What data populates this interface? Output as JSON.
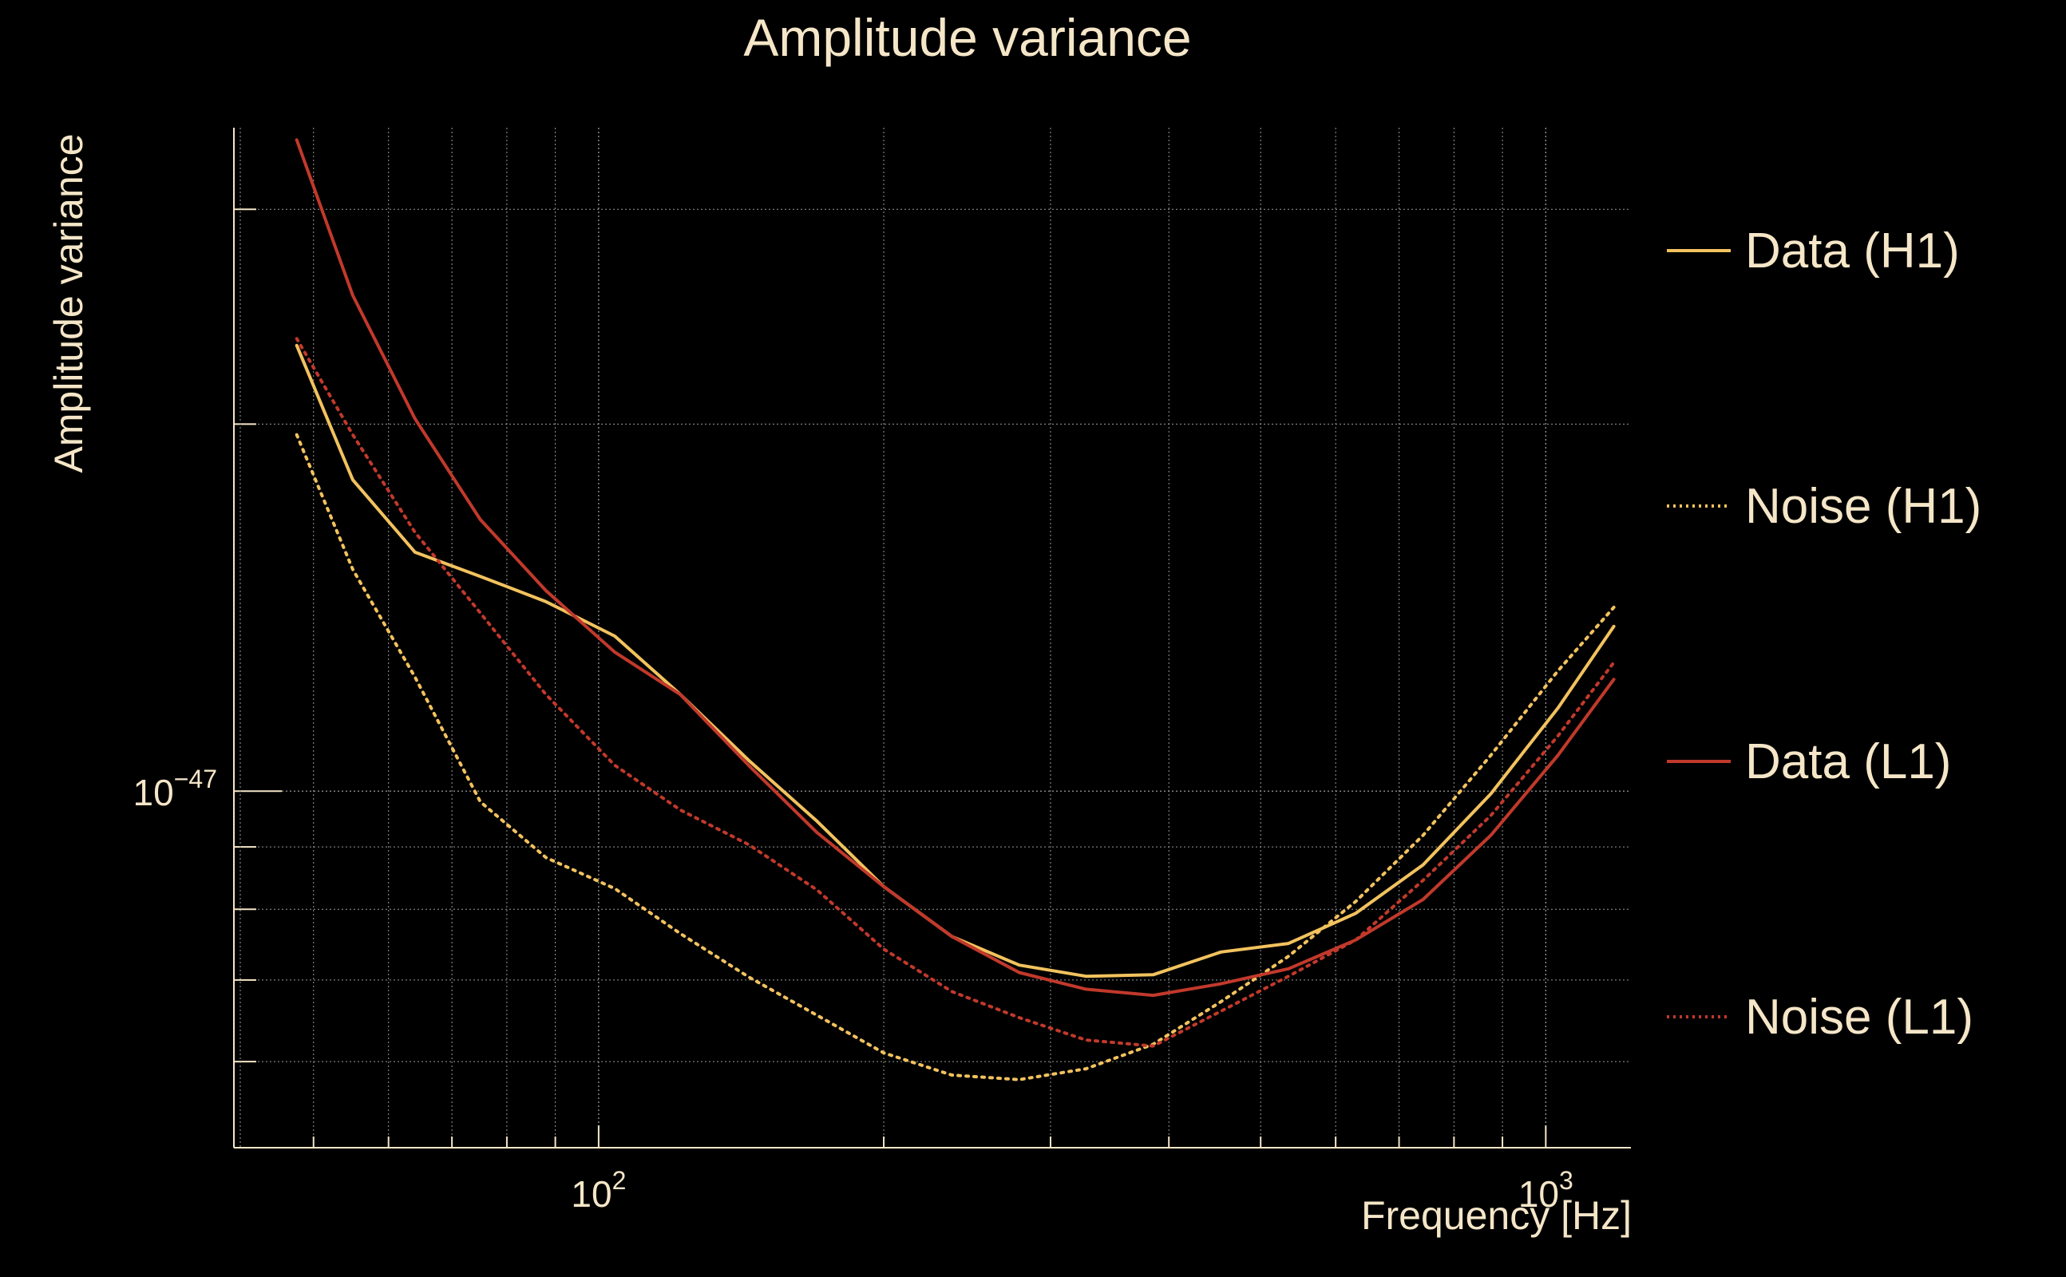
{
  "chart_data": {
    "type": "line",
    "title": "Amplitude variance",
    "xlabel": "Frequency [Hz]",
    "ylabel": "Amplitude variance",
    "xscale": "log",
    "yscale": "log",
    "xlim": [
      41.2,
      1230
    ],
    "ylim": [
      5.1e-48,
      3.5e-47
    ],
    "grid": true,
    "legend_position": "right",
    "x_ticks": [
      {
        "value": 100,
        "base": "10",
        "exp": "2"
      },
      {
        "value": 1000,
        "base": "10",
        "exp": "3"
      }
    ],
    "y_ticks": [
      {
        "value": 1e-47,
        "base": "10",
        "exp": "−47"
      }
    ],
    "series": [
      {
        "name": "Data (H1)",
        "color": "#F2C25E",
        "dash": "solid",
        "x": [
          48,
          55,
          64,
          75,
          88,
          104,
          122,
          144,
          170,
          200,
          236,
          278,
          327,
          385,
          454,
          535,
          630,
          742,
          875,
          1030,
          1180
        ],
        "y": [
          2.32e-47,
          1.8e-47,
          1.57e-47,
          1.5e-47,
          1.43e-47,
          1.34e-47,
          1.2e-47,
          1.06e-47,
          9.45e-48,
          8.35e-48,
          7.6e-48,
          7.2e-48,
          7.05e-48,
          7.07e-48,
          7.38e-48,
          7.5e-48,
          7.94e-48,
          8.7e-48,
          9.95e-48,
          1.17e-47,
          1.365e-47
        ]
      },
      {
        "name": "Noise (H1)",
        "color": "#F2C25E",
        "dash": "dotted",
        "x": [
          48,
          55,
          64,
          75,
          88,
          104,
          122,
          144,
          170,
          200,
          236,
          278,
          327,
          385,
          454,
          535,
          630,
          742,
          875,
          1030,
          1180
        ],
        "y": [
          1.96e-47,
          1.52e-47,
          1.24e-47,
          9.8e-48,
          8.82e-48,
          8.32e-48,
          7.64e-48,
          7.04e-48,
          6.55e-48,
          6.1e-48,
          5.85e-48,
          5.8e-48,
          5.92e-48,
          6.2e-48,
          6.72e-48,
          7.32e-48,
          8.12e-48,
          9.2e-48,
          1.07e-47,
          1.255e-47,
          1.415e-47
        ]
      },
      {
        "name": "Data (L1)",
        "color": "#C1392B",
        "dash": "solid",
        "x": [
          48,
          55,
          64,
          75,
          88,
          104,
          122,
          144,
          170,
          200,
          236,
          278,
          327,
          385,
          454,
          535,
          630,
          742,
          875,
          1030,
          1180
        ],
        "y": [
          3.42e-47,
          2.55e-47,
          2.02e-47,
          1.67e-47,
          1.46e-47,
          1.3e-47,
          1.2e-47,
          1.05e-47,
          9.25e-48,
          8.35e-48,
          7.6e-48,
          7.1e-48,
          6.88e-48,
          6.8e-48,
          6.95e-48,
          7.15e-48,
          7.55e-48,
          8.15e-48,
          9.2e-48,
          1.07e-47,
          1.235e-47
        ]
      },
      {
        "name": "Noise (L1)",
        "color": "#C1392B",
        "dash": "dotted",
        "x": [
          48,
          55,
          64,
          75,
          88,
          104,
          122,
          144,
          170,
          200,
          236,
          278,
          327,
          385,
          454,
          535,
          630,
          742,
          875,
          1030,
          1180
        ],
        "y": [
          2.35e-47,
          1.96e-47,
          1.63e-47,
          1.4e-47,
          1.2e-47,
          1.05e-47,
          9.65e-48,
          9.04e-48,
          8.3e-48,
          7.42e-48,
          6.85e-48,
          6.52e-48,
          6.25e-48,
          6.18e-48,
          6.6e-48,
          7.05e-48,
          7.55e-48,
          8.45e-48,
          9.55e-48,
          1.11e-47,
          1.275e-47
        ]
      }
    ]
  }
}
